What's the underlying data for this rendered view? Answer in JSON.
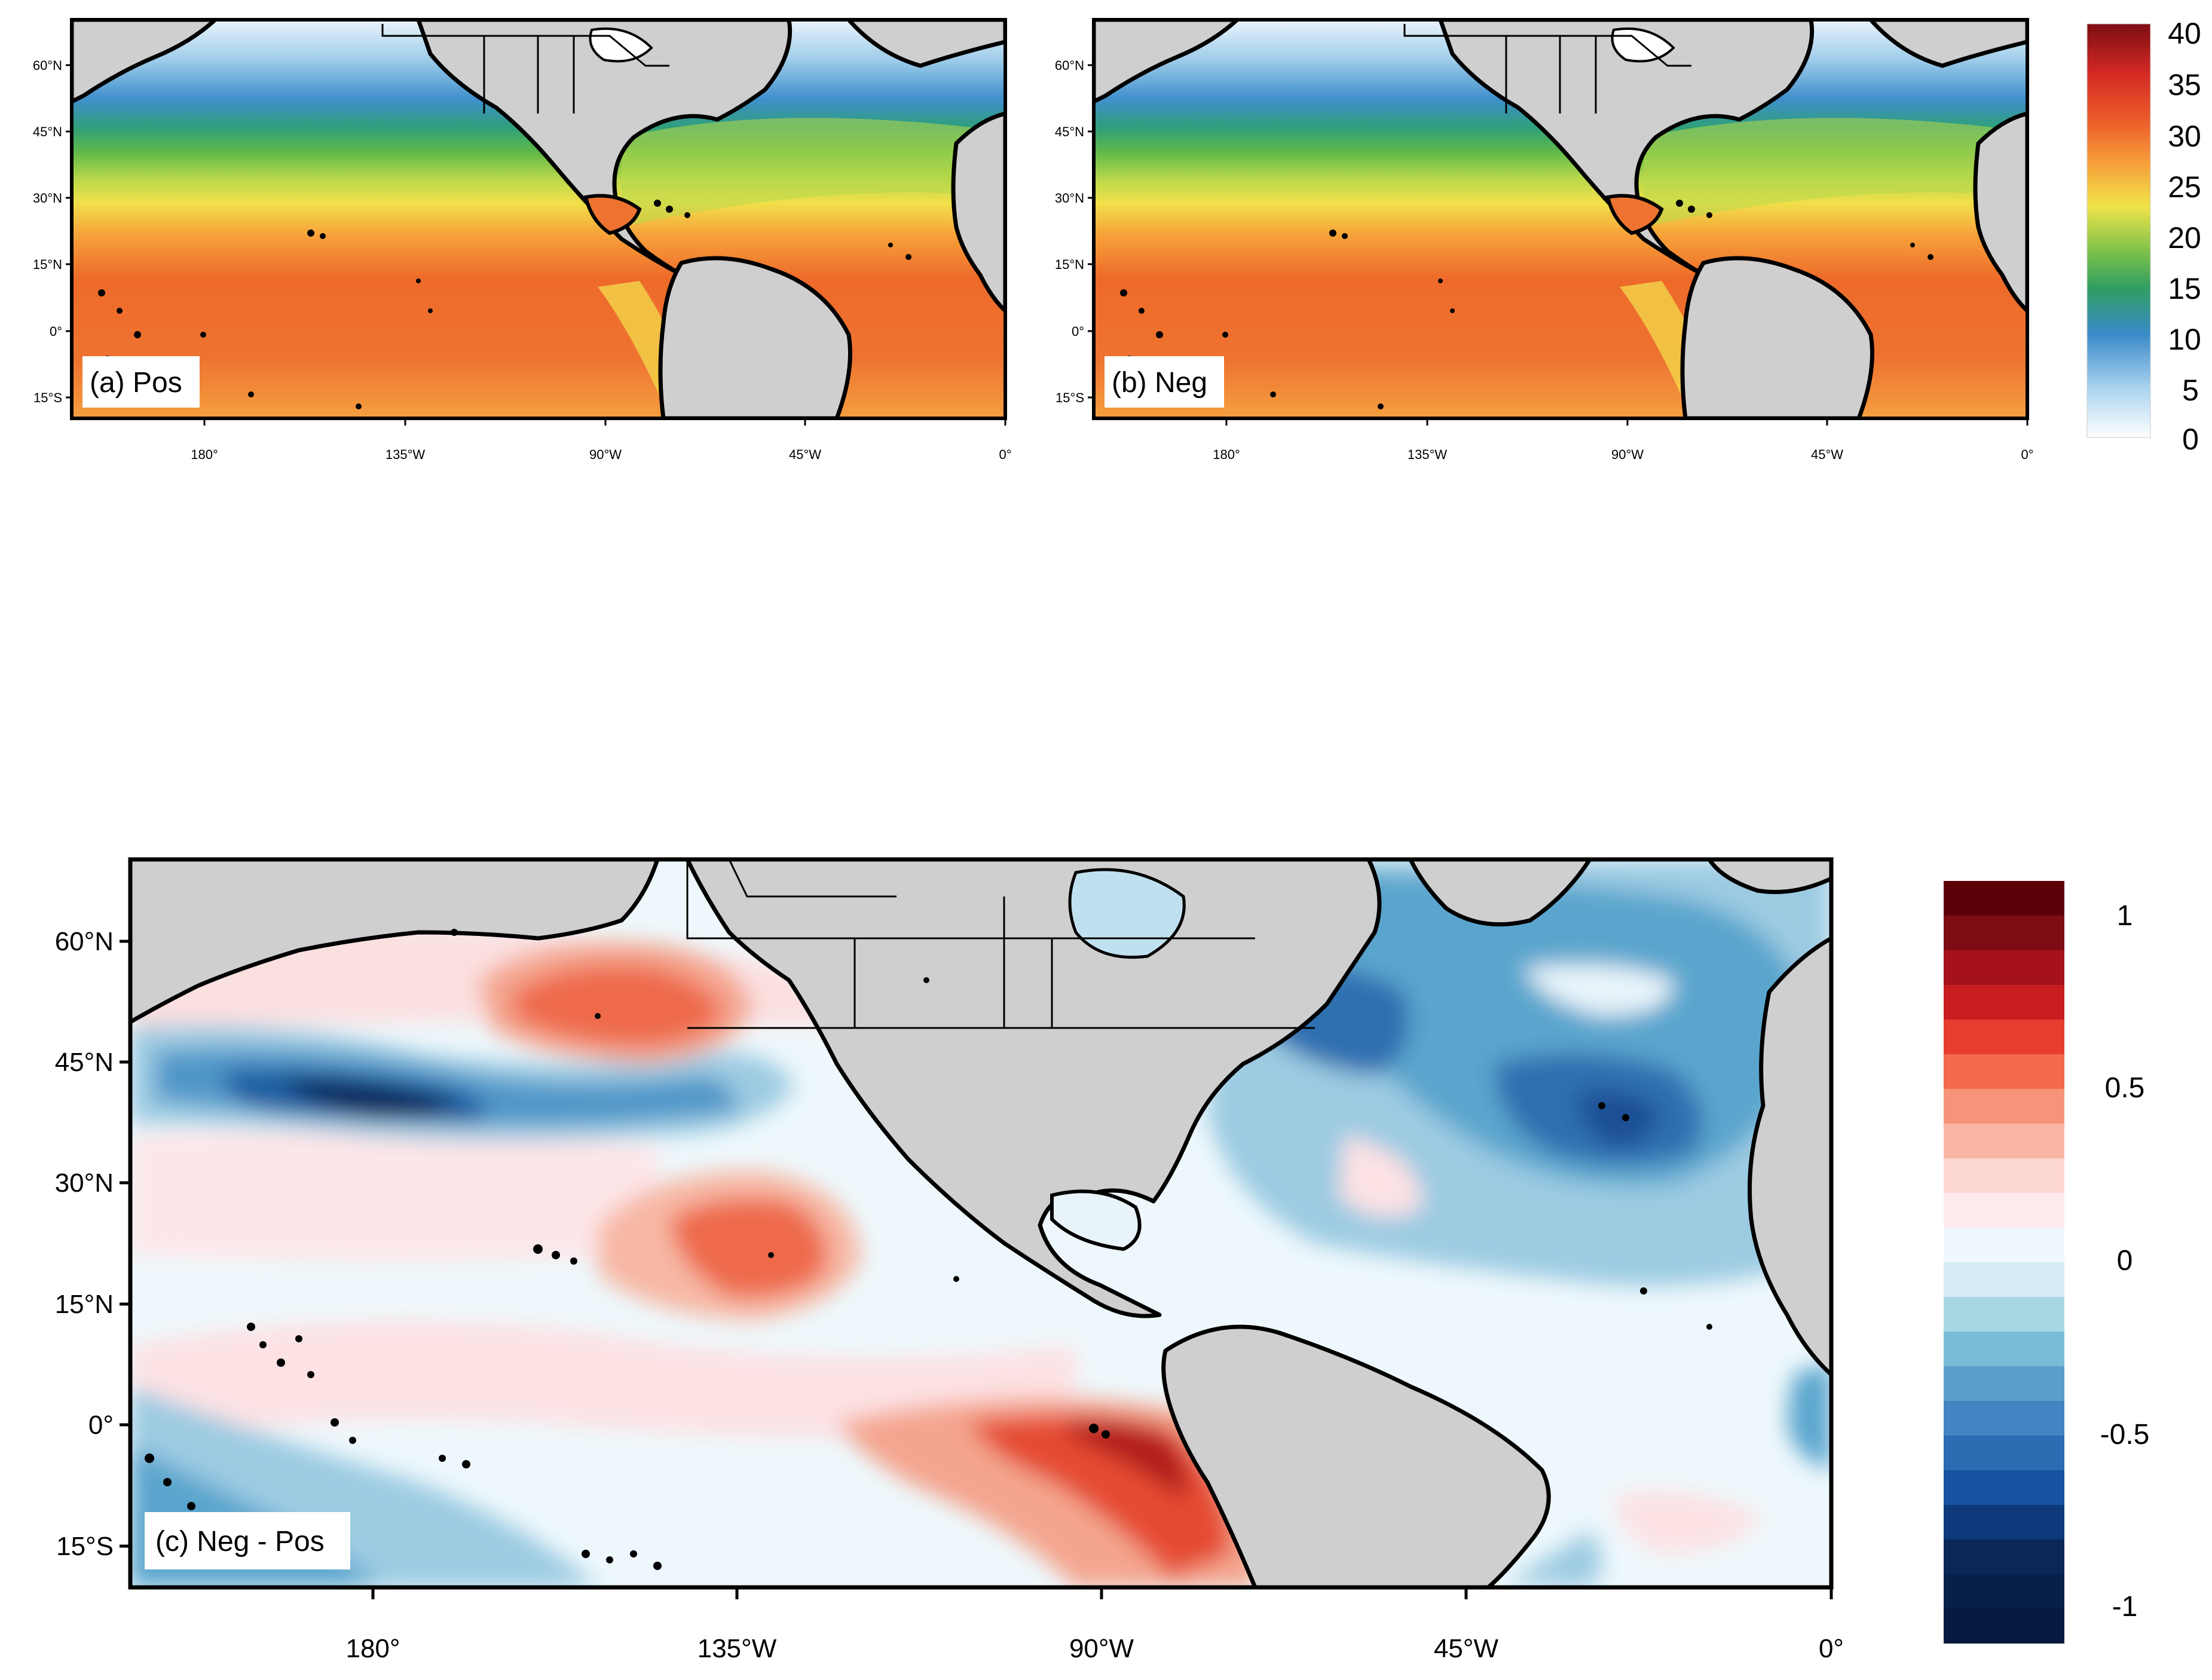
{
  "panels": [
    {
      "id": "a",
      "label": "(a) Pos"
    },
    {
      "id": "b",
      "label": "(b) Neg"
    },
    {
      "id": "c",
      "label": "(c) Neg - Pos"
    }
  ],
  "axes": {
    "lat_ticks": [
      "60°N",
      "45°N",
      "30°N",
      "15°N",
      "0°",
      "15°S"
    ],
    "lon_ticks": [
      "180°",
      "135°W",
      "90°W",
      "45°W",
      "0°"
    ]
  },
  "colorbar_top": {
    "labels": [
      "40",
      "35",
      "30",
      "25",
      "20",
      "15",
      "10",
      "5",
      "0"
    ],
    "min": 0,
    "max": 40
  },
  "colorbar_bottom": {
    "labels": [
      "1",
      "0.5",
      "0",
      "-0.5",
      "-1"
    ],
    "min": -1.1,
    "max": 1.1
  },
  "colors": {
    "land": "#cfcfcf",
    "coast": "#000000"
  },
  "chart_data": {
    "type": "heatmap",
    "panels": [
      "(a) Pos",
      "(b) Neg",
      "(c) Neg - Pos"
    ],
    "lon_range": [
      -210,
      0
    ],
    "lat_range": [
      -20,
      70
    ],
    "top_colorbar_range": [
      0,
      40
    ],
    "bottom_colorbar_range": [
      -1.1,
      1.1
    ]
  }
}
